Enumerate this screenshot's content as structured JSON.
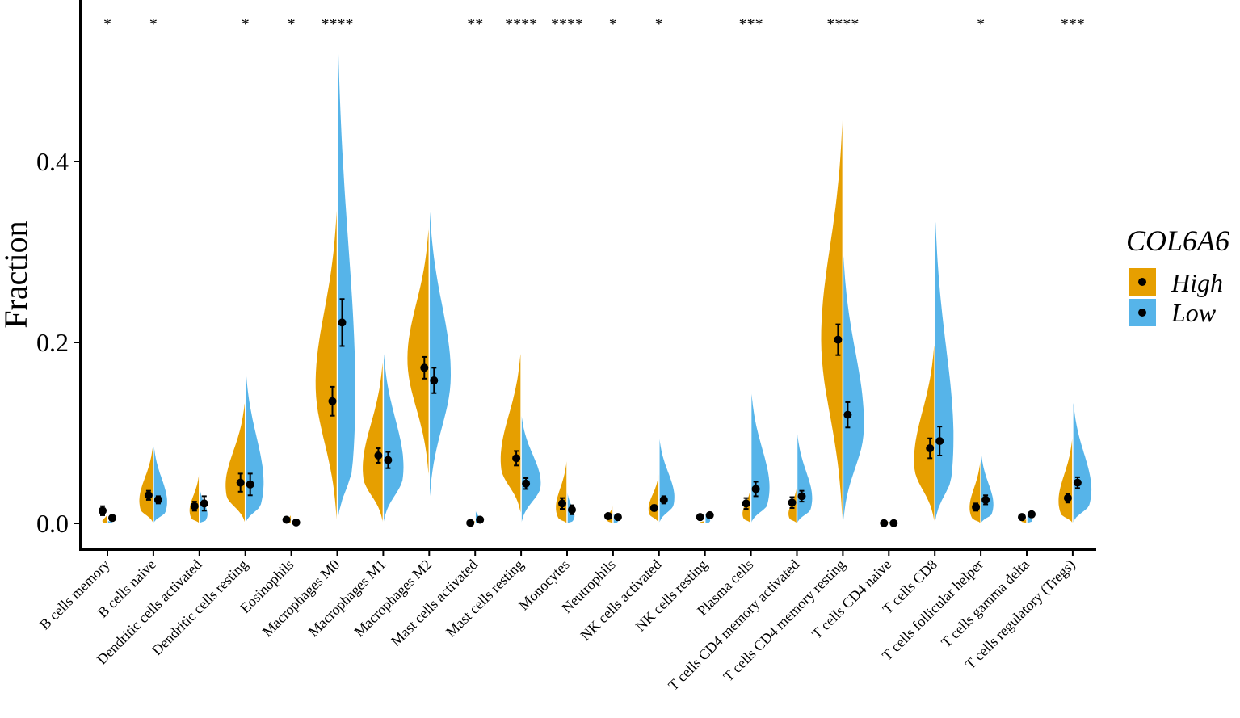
{
  "chart_data": {
    "type": "split-violin",
    "ylabel": "Fraction",
    "xlabel": "",
    "ylim": [
      -0.025,
      0.56
    ],
    "yticks": [
      0.0,
      0.2,
      0.4
    ],
    "ytick_labels": [
      "0.0",
      "0.2",
      "0.4"
    ],
    "legend": {
      "title": "COL6A6",
      "placement": "right",
      "items": [
        {
          "name": "High",
          "color": "#E69F00"
        },
        {
          "name": "Low",
          "color": "#56B4E9"
        }
      ]
    },
    "categories": [
      "B cells memory",
      "B cells naive",
      "Dendritic cells activated",
      "Dendritic cells resting",
      "Eosinophils",
      "Macrophages M0",
      "Macrophages M1",
      "Macrophages M2",
      "Mast cells activated",
      "Mast cells resting",
      "Monocytes",
      "Neutrophils",
      "NK cells activated",
      "NK cells resting",
      "Plasma cells",
      "T cells CD4 memory activated",
      "T cells CD4 memory resting",
      "T cells CD4 naive",
      "T cells CD8",
      "T cells follicular helper",
      "T cells gamma delta",
      "T cells regulatory (Tregs)"
    ],
    "significance": [
      "*",
      "*",
      "",
      "*",
      "*",
      "****",
      "",
      "",
      "**",
      "****",
      "****",
      "*",
      "*",
      "",
      "***",
      "",
      "****",
      "",
      "",
      "*",
      "",
      "***"
    ],
    "series": [
      {
        "name": "High",
        "color": "#E69F00",
        "means": [
          0.014,
          0.031,
          0.019,
          0.045,
          0.004,
          0.135,
          0.075,
          0.172,
          0.0005,
          0.072,
          0.022,
          0.008,
          0.017,
          0.007,
          0.022,
          0.023,
          0.203,
          0.0002,
          0.083,
          0.018,
          0.007,
          0.028
        ],
        "errors": [
          0.005,
          0.005,
          0.005,
          0.01,
          0.002,
          0.016,
          0.008,
          0.012,
          0.001,
          0.008,
          0.006,
          0.002,
          0.003,
          0.002,
          0.006,
          0.006,
          0.017,
          0.001,
          0.011,
          0.004,
          0.002,
          0.005
        ],
        "ranges": [
          [
            0,
            0.01
          ],
          [
            0,
            0.087
          ],
          [
            0,
            0.055
          ],
          [
            0,
            0.135
          ],
          [
            0,
            0.01
          ],
          [
            0,
            0.35
          ],
          [
            0,
            0.18
          ],
          [
            0.05,
            0.33
          ],
          [
            0,
            0.003
          ],
          [
            0.01,
            0.19
          ],
          [
            0,
            0.07
          ],
          [
            0,
            0.02
          ],
          [
            0,
            0.055
          ],
          [
            0,
            0.003
          ],
          [
            0,
            0.04
          ],
          [
            0,
            0.04
          ],
          [
            0,
            0.45
          ],
          [
            0,
            0.002
          ],
          [
            0,
            0.2
          ],
          [
            0,
            0.07
          ],
          [
            0,
            0.005
          ],
          [
            0,
            0.095
          ]
        ],
        "peaks": [
          0.001,
          0.015,
          0.005,
          0.03,
          0.001,
          0.15,
          0.05,
          0.18,
          0.001,
          0.06,
          0.005,
          0.002,
          0.01,
          0.001,
          0.005,
          0.005,
          0.2,
          0.001,
          0.06,
          0.005,
          0.002,
          0.01
        ]
      },
      {
        "name": "Low",
        "color": "#56B4E9",
        "means": [
          0.006,
          0.026,
          0.022,
          0.043,
          0.001,
          0.222,
          0.07,
          0.158,
          0.004,
          0.044,
          0.015,
          0.007,
          0.026,
          0.009,
          0.038,
          0.03,
          0.12,
          0.0002,
          0.091,
          0.026,
          0.01,
          0.045
        ],
        "errors": [
          0.001,
          0.004,
          0.008,
          0.012,
          0.001,
          0.026,
          0.009,
          0.014,
          0.002,
          0.006,
          0.005,
          0.002,
          0.004,
          0.002,
          0.008,
          0.006,
          0.014,
          0.001,
          0.016,
          0.005,
          0.002,
          0.006
        ],
        "ranges": [
          [
            0,
            0.003
          ],
          [
            0,
            0.087
          ],
          [
            0,
            0.04
          ],
          [
            0,
            0.17
          ],
          [
            0,
            0.003
          ],
          [
            0,
            0.55
          ],
          [
            0,
            0.19
          ],
          [
            0.025,
            0.35
          ],
          [
            0,
            0.015
          ],
          [
            0,
            0.12
          ],
          [
            0,
            0.035
          ],
          [
            0,
            0.012
          ],
          [
            0,
            0.095
          ],
          [
            0,
            0.012
          ],
          [
            0,
            0.145
          ],
          [
            0,
            0.1
          ],
          [
            0,
            0.3
          ],
          [
            0,
            0.002
          ],
          [
            0,
            0.34
          ],
          [
            0,
            0.078
          ],
          [
            0,
            0.012
          ],
          [
            0,
            0.135
          ]
        ],
        "peaks": [
          0.001,
          0.012,
          0.003,
          0.02,
          0.001,
          0.06,
          0.05,
          0.16,
          0.001,
          0.04,
          0.002,
          0.001,
          0.02,
          0.001,
          0.02,
          0.015,
          0.1,
          0.001,
          0.05,
          0.01,
          0.002,
          0.02
        ]
      }
    ]
  }
}
